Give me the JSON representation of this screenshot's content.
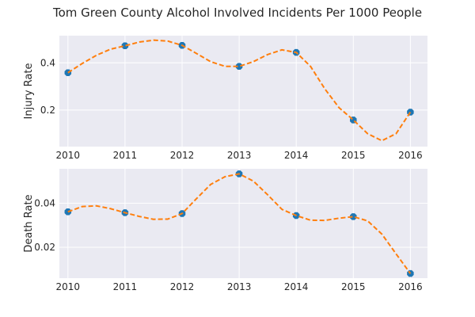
{
  "chart_data": {
    "title": "Tom Green County Alcohol Involved Incidents Per 1000 People",
    "charts": [
      {
        "type": "scatter",
        "ylabel": "Injury Rate",
        "x": [
          2010,
          2011,
          2012,
          2013,
          2014,
          2015,
          2016
        ],
        "values": [
          0.358,
          0.472,
          0.474,
          0.385,
          0.444,
          0.158,
          0.191
        ],
        "curve": [
          [
            2010,
            0.358
          ],
          [
            2010.25,
            0.397
          ],
          [
            2010.5,
            0.432
          ],
          [
            2010.75,
            0.458
          ],
          [
            2011,
            0.472
          ],
          [
            2011.25,
            0.488
          ],
          [
            2011.5,
            0.496
          ],
          [
            2011.75,
            0.492
          ],
          [
            2012,
            0.474
          ],
          [
            2012.25,
            0.44
          ],
          [
            2012.5,
            0.405
          ],
          [
            2012.75,
            0.385
          ],
          [
            2013,
            0.385
          ],
          [
            2013.25,
            0.405
          ],
          [
            2013.5,
            0.435
          ],
          [
            2013.75,
            0.455
          ],
          [
            2014,
            0.444
          ],
          [
            2014.25,
            0.385
          ],
          [
            2014.5,
            0.29
          ],
          [
            2014.75,
            0.21
          ],
          [
            2015,
            0.158
          ],
          [
            2015.25,
            0.1
          ],
          [
            2015.5,
            0.07
          ],
          [
            2015.75,
            0.1
          ],
          [
            2016,
            0.191
          ]
        ],
        "yticks": [
          0.2,
          0.4
        ],
        "ylim": [
          0.045,
          0.515
        ],
        "xlim": [
          2009.85,
          2016.3
        ]
      },
      {
        "type": "scatter",
        "ylabel": "Death Rate",
        "x": [
          2010,
          2011,
          2012,
          2013,
          2014,
          2015,
          2016
        ],
        "values": [
          0.0361,
          0.0357,
          0.0353,
          0.0533,
          0.0344,
          0.0339,
          0.0081
        ],
        "curve": [
          [
            2010,
            0.0361
          ],
          [
            2010.25,
            0.0385
          ],
          [
            2010.5,
            0.0388
          ],
          [
            2010.75,
            0.0375
          ],
          [
            2011,
            0.0357
          ],
          [
            2011.25,
            0.034
          ],
          [
            2011.5,
            0.0327
          ],
          [
            2011.75,
            0.0328
          ],
          [
            2012,
            0.0353
          ],
          [
            2012.25,
            0.042
          ],
          [
            2012.5,
            0.0485
          ],
          [
            2012.75,
            0.052
          ],
          [
            2013,
            0.0533
          ],
          [
            2013.25,
            0.05
          ],
          [
            2013.5,
            0.0438
          ],
          [
            2013.75,
            0.0372
          ],
          [
            2014,
            0.0344
          ],
          [
            2014.25,
            0.0323
          ],
          [
            2014.5,
            0.0322
          ],
          [
            2014.75,
            0.0332
          ],
          [
            2015,
            0.0339
          ],
          [
            2015.25,
            0.032
          ],
          [
            2015.5,
            0.026
          ],
          [
            2015.75,
            0.017
          ],
          [
            2016,
            0.0081
          ]
        ],
        "yticks": [
          0.02,
          0.04
        ],
        "ylim": [
          0.006,
          0.0556
        ],
        "xlim": [
          2009.85,
          2016.3
        ]
      }
    ],
    "grid": true,
    "colors": {
      "background": "#eaeaf2",
      "grid": "#ffffff",
      "marker": "#1f77b4",
      "curve": "#ff7f0e"
    }
  }
}
